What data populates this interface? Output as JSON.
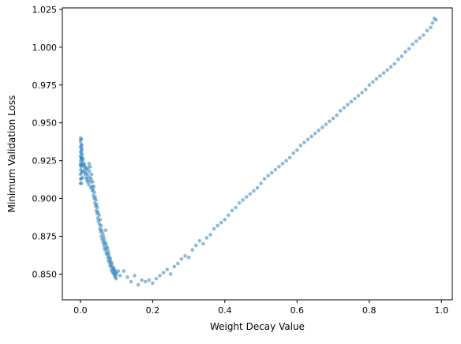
{
  "chart_data": {
    "type": "scatter",
    "title": "",
    "xlabel": "Weight Decay Value",
    "ylabel": "Minimum Validation Loss",
    "xlim": [
      -0.05,
      1.03
    ],
    "ylim": [
      0.833,
      1.026
    ],
    "grid": false,
    "legend": "none",
    "marker_color": "#1f77b4",
    "marker_alpha": 0.5,
    "xticks": [
      {
        "value": 0.0,
        "label": "0.0"
      },
      {
        "value": 0.2,
        "label": "0.2"
      },
      {
        "value": 0.4,
        "label": "0.4"
      },
      {
        "value": 0.6,
        "label": "0.6"
      },
      {
        "value": 0.8,
        "label": "0.8"
      },
      {
        "value": 1.0,
        "label": "1.0"
      }
    ],
    "yticks": [
      {
        "value": 0.85,
        "label": "0.850"
      },
      {
        "value": 0.875,
        "label": "0.875"
      },
      {
        "value": 0.9,
        "label": "0.900"
      },
      {
        "value": 0.925,
        "label": "0.925"
      },
      {
        "value": 0.95,
        "label": "0.950"
      },
      {
        "value": 0.975,
        "label": "0.975"
      },
      {
        "value": 1.0,
        "label": "1.000"
      },
      {
        "value": 1.025,
        "label": "1.025"
      }
    ],
    "points": [
      [
        0.0,
        0.938
      ],
      [
        0.0,
        0.934
      ],
      [
        0.001,
        0.931
      ],
      [
        0.0,
        0.928
      ],
      [
        0.001,
        0.925
      ],
      [
        0.0,
        0.922
      ],
      [
        0.001,
        0.919
      ],
      [
        0.0,
        0.916
      ],
      [
        0.001,
        0.913
      ],
      [
        0.0,
        0.91
      ],
      [
        0.002,
        0.936
      ],
      [
        0.002,
        0.93
      ],
      [
        0.003,
        0.926
      ],
      [
        0.002,
        0.921
      ],
      [
        0.003,
        0.917
      ],
      [
        0.002,
        0.913
      ],
      [
        0.003,
        0.91
      ],
      [
        0.004,
        0.932
      ],
      [
        0.004,
        0.927
      ],
      [
        0.005,
        0.922
      ],
      [
        0.001,
        0.94
      ],
      [
        0.003,
        0.939
      ],
      [
        0.004,
        0.935
      ],
      [
        0.005,
        0.929
      ],
      [
        0.006,
        0.924
      ],
      [
        0.005,
        0.918
      ],
      [
        0.006,
        0.914
      ],
      [
        0.001,
        0.923
      ],
      [
        0.002,
        0.927
      ],
      [
        0.003,
        0.933
      ],
      [
        0.008,
        0.926
      ],
      [
        0.009,
        0.922
      ],
      [
        0.01,
        0.918
      ],
      [
        0.011,
        0.923
      ],
      [
        0.012,
        0.92
      ],
      [
        0.013,
        0.916
      ],
      [
        0.014,
        0.921
      ],
      [
        0.015,
        0.917
      ],
      [
        0.016,
        0.913
      ],
      [
        0.017,
        0.919
      ],
      [
        0.018,
        0.914
      ],
      [
        0.019,
        0.911
      ],
      [
        0.02,
        0.916
      ],
      [
        0.021,
        0.92
      ],
      [
        0.022,
        0.912
      ],
      [
        0.023,
        0.909
      ],
      [
        0.024,
        0.923
      ],
      [
        0.025,
        0.918
      ],
      [
        0.026,
        0.914
      ],
      [
        0.027,
        0.921
      ],
      [
        0.028,
        0.911
      ],
      [
        0.029,
        0.907
      ],
      [
        0.03,
        0.913
      ],
      [
        0.031,
        0.916
      ],
      [
        0.032,
        0.908
      ],
      [
        0.033,
        0.905
      ],
      [
        0.034,
        0.911
      ],
      [
        0.035,
        0.906
      ],
      [
        0.036,
        0.902
      ],
      [
        0.037,
        0.908
      ],
      [
        0.038,
        0.9
      ],
      [
        0.039,
        0.904
      ],
      [
        0.04,
        0.897
      ],
      [
        0.041,
        0.901
      ],
      [
        0.042,
        0.895
      ],
      [
        0.043,
        0.899
      ],
      [
        0.044,
        0.892
      ],
      [
        0.045,
        0.896
      ],
      [
        0.046,
        0.89
      ],
      [
        0.047,
        0.894
      ],
      [
        0.048,
        0.887
      ],
      [
        0.049,
        0.891
      ],
      [
        0.05,
        0.885
      ],
      [
        0.052,
        0.889
      ],
      [
        0.053,
        0.883
      ],
      [
        0.054,
        0.88
      ],
      [
        0.055,
        0.886
      ],
      [
        0.056,
        0.878
      ],
      [
        0.057,
        0.882
      ],
      [
        0.058,
        0.875
      ],
      [
        0.059,
        0.879
      ],
      [
        0.06,
        0.873
      ],
      [
        0.062,
        0.877
      ],
      [
        0.063,
        0.871
      ],
      [
        0.064,
        0.875
      ],
      [
        0.065,
        0.869
      ],
      [
        0.066,
        0.873
      ],
      [
        0.067,
        0.867
      ],
      [
        0.068,
        0.871
      ],
      [
        0.069,
        0.866
      ],
      [
        0.07,
        0.879
      ],
      [
        0.071,
        0.87
      ],
      [
        0.072,
        0.864
      ],
      [
        0.073,
        0.868
      ],
      [
        0.074,
        0.863
      ],
      [
        0.075,
        0.867
      ],
      [
        0.076,
        0.861
      ],
      [
        0.077,
        0.865
      ],
      [
        0.078,
        0.859
      ],
      [
        0.079,
        0.863
      ],
      [
        0.08,
        0.858
      ],
      [
        0.081,
        0.861
      ],
      [
        0.082,
        0.856
      ],
      [
        0.083,
        0.86
      ],
      [
        0.084,
        0.855
      ],
      [
        0.085,
        0.858
      ],
      [
        0.086,
        0.853
      ],
      [
        0.087,
        0.857
      ],
      [
        0.088,
        0.852
      ],
      [
        0.089,
        0.855
      ],
      [
        0.09,
        0.851
      ],
      [
        0.092,
        0.854
      ],
      [
        0.093,
        0.85
      ],
      [
        0.094,
        0.853
      ],
      [
        0.095,
        0.849
      ],
      [
        0.096,
        0.852
      ],
      [
        0.097,
        0.848
      ],
      [
        0.098,
        0.851
      ],
      [
        0.099,
        0.847
      ],
      [
        0.1,
        0.85
      ],
      [
        0.105,
        0.852
      ],
      [
        0.11,
        0.849
      ],
      [
        0.12,
        0.852
      ],
      [
        0.13,
        0.848
      ],
      [
        0.14,
        0.845
      ],
      [
        0.15,
        0.849
      ],
      [
        0.16,
        0.843
      ],
      [
        0.17,
        0.846
      ],
      [
        0.18,
        0.845
      ],
      [
        0.19,
        0.846
      ],
      [
        0.2,
        0.844
      ],
      [
        0.21,
        0.847
      ],
      [
        0.22,
        0.849
      ],
      [
        0.23,
        0.851
      ],
      [
        0.24,
        0.853
      ],
      [
        0.25,
        0.85
      ],
      [
        0.26,
        0.855
      ],
      [
        0.27,
        0.857
      ],
      [
        0.28,
        0.86
      ],
      [
        0.29,
        0.862
      ],
      [
        0.3,
        0.861
      ],
      [
        0.31,
        0.866
      ],
      [
        0.32,
        0.869
      ],
      [
        0.33,
        0.872
      ],
      [
        0.34,
        0.87
      ],
      [
        0.35,
        0.874
      ],
      [
        0.36,
        0.876
      ],
      [
        0.37,
        0.88
      ],
      [
        0.38,
        0.882
      ],
      [
        0.39,
        0.884
      ],
      [
        0.4,
        0.886
      ],
      [
        0.41,
        0.889
      ],
      [
        0.42,
        0.892
      ],
      [
        0.43,
        0.894
      ],
      [
        0.44,
        0.897
      ],
      [
        0.45,
        0.899
      ],
      [
        0.46,
        0.901
      ],
      [
        0.47,
        0.903
      ],
      [
        0.48,
        0.905
      ],
      [
        0.49,
        0.907
      ],
      [
        0.5,
        0.91
      ],
      [
        0.51,
        0.913
      ],
      [
        0.52,
        0.915
      ],
      [
        0.53,
        0.917
      ],
      [
        0.54,
        0.919
      ],
      [
        0.55,
        0.921
      ],
      [
        0.56,
        0.923
      ],
      [
        0.57,
        0.925
      ],
      [
        0.58,
        0.927
      ],
      [
        0.59,
        0.93
      ],
      [
        0.6,
        0.932
      ],
      [
        0.61,
        0.935
      ],
      [
        0.62,
        0.937
      ],
      [
        0.63,
        0.939
      ],
      [
        0.64,
        0.941
      ],
      [
        0.65,
        0.943
      ],
      [
        0.66,
        0.945
      ],
      [
        0.67,
        0.947
      ],
      [
        0.68,
        0.949
      ],
      [
        0.69,
        0.951
      ],
      [
        0.7,
        0.953
      ],
      [
        0.71,
        0.955
      ],
      [
        0.72,
        0.958
      ],
      [
        0.73,
        0.96
      ],
      [
        0.74,
        0.962
      ],
      [
        0.75,
        0.964
      ],
      [
        0.76,
        0.966
      ],
      [
        0.77,
        0.968
      ],
      [
        0.78,
        0.97
      ],
      [
        0.79,
        0.972
      ],
      [
        0.8,
        0.975
      ],
      [
        0.81,
        0.977
      ],
      [
        0.82,
        0.979
      ],
      [
        0.83,
        0.981
      ],
      [
        0.84,
        0.983
      ],
      [
        0.85,
        0.985
      ],
      [
        0.86,
        0.987
      ],
      [
        0.87,
        0.989
      ],
      [
        0.88,
        0.992
      ],
      [
        0.89,
        0.994
      ],
      [
        0.9,
        0.997
      ],
      [
        0.91,
        0.999
      ],
      [
        0.92,
        1.002
      ],
      [
        0.93,
        1.004
      ],
      [
        0.94,
        1.006
      ],
      [
        0.95,
        1.008
      ],
      [
        0.96,
        1.011
      ],
      [
        0.97,
        1.013
      ],
      [
        0.975,
        1.016
      ],
      [
        0.98,
        1.019
      ],
      [
        0.985,
        1.018
      ]
    ]
  }
}
